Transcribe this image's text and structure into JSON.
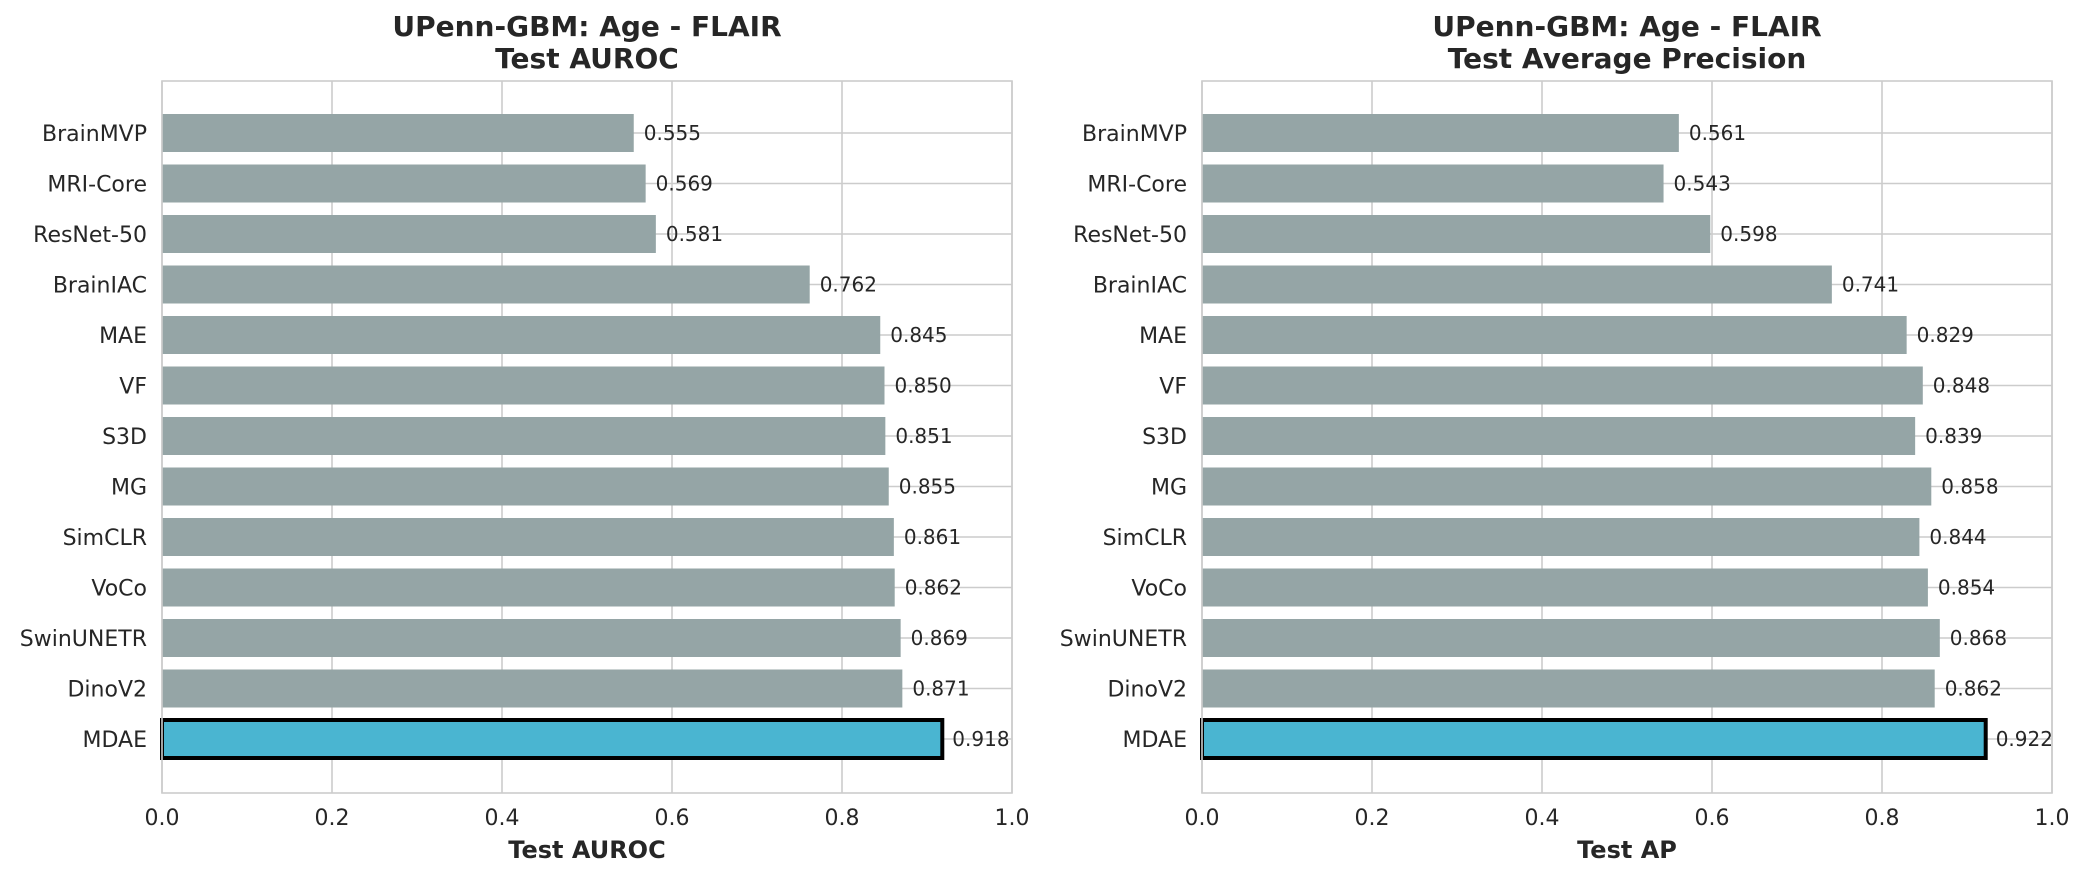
{
  "chart_data": [
    {
      "type": "bar",
      "orientation": "horizontal",
      "title": "UPenn-GBM: Age - FLAIR",
      "subtitle": "Test AUROC",
      "xlabel": "Test AUROC",
      "ylabel": "",
      "xlim": [
        0.0,
        1.0
      ],
      "xticks": [
        "0.0",
        "0.2",
        "0.4",
        "0.6",
        "0.8",
        "1.0"
      ],
      "grid": true,
      "categories": [
        "BrainMVP",
        "MRI-Core",
        "ResNet-50",
        "BrainIAC",
        "MAE",
        "VF",
        "S3D",
        "MG",
        "SimCLR",
        "VoCo",
        "SwinUNETR",
        "DinoV2",
        "MDAE"
      ],
      "values": [
        0.555,
        0.569,
        0.581,
        0.762,
        0.845,
        0.85,
        0.851,
        0.855,
        0.861,
        0.862,
        0.869,
        0.871,
        0.918
      ],
      "value_labels": [
        "0.555",
        "0.569",
        "0.581",
        "0.762",
        "0.845",
        "0.850",
        "0.851",
        "0.855",
        "0.861",
        "0.862",
        "0.869",
        "0.871",
        "0.918"
      ],
      "highlight": "MDAE"
    },
    {
      "type": "bar",
      "orientation": "horizontal",
      "title": "UPenn-GBM: Age - FLAIR",
      "subtitle": "Test Average Precision",
      "xlabel": "Test AP",
      "ylabel": "",
      "xlim": [
        0.0,
        1.0
      ],
      "xticks": [
        "0.0",
        "0.2",
        "0.4",
        "0.6",
        "0.8",
        "1.0"
      ],
      "grid": true,
      "categories": [
        "BrainMVP",
        "MRI-Core",
        "ResNet-50",
        "BrainIAC",
        "MAE",
        "VF",
        "S3D",
        "MG",
        "SimCLR",
        "VoCo",
        "SwinUNETR",
        "DinoV2",
        "MDAE"
      ],
      "values": [
        0.561,
        0.543,
        0.598,
        0.741,
        0.829,
        0.848,
        0.839,
        0.858,
        0.844,
        0.854,
        0.868,
        0.862,
        0.922
      ],
      "value_labels": [
        "0.561",
        "0.543",
        "0.598",
        "0.741",
        "0.829",
        "0.848",
        "0.839",
        "0.858",
        "0.844",
        "0.854",
        "0.868",
        "0.862",
        "0.922"
      ],
      "highlight": "MDAE"
    }
  ],
  "colors": {
    "bar": "#95a5a6",
    "highlight_bar": "#4ab5d1",
    "highlight_edge": "#000000",
    "grid": "#cccccc",
    "spine": "#cccccc",
    "text": "#262626"
  }
}
